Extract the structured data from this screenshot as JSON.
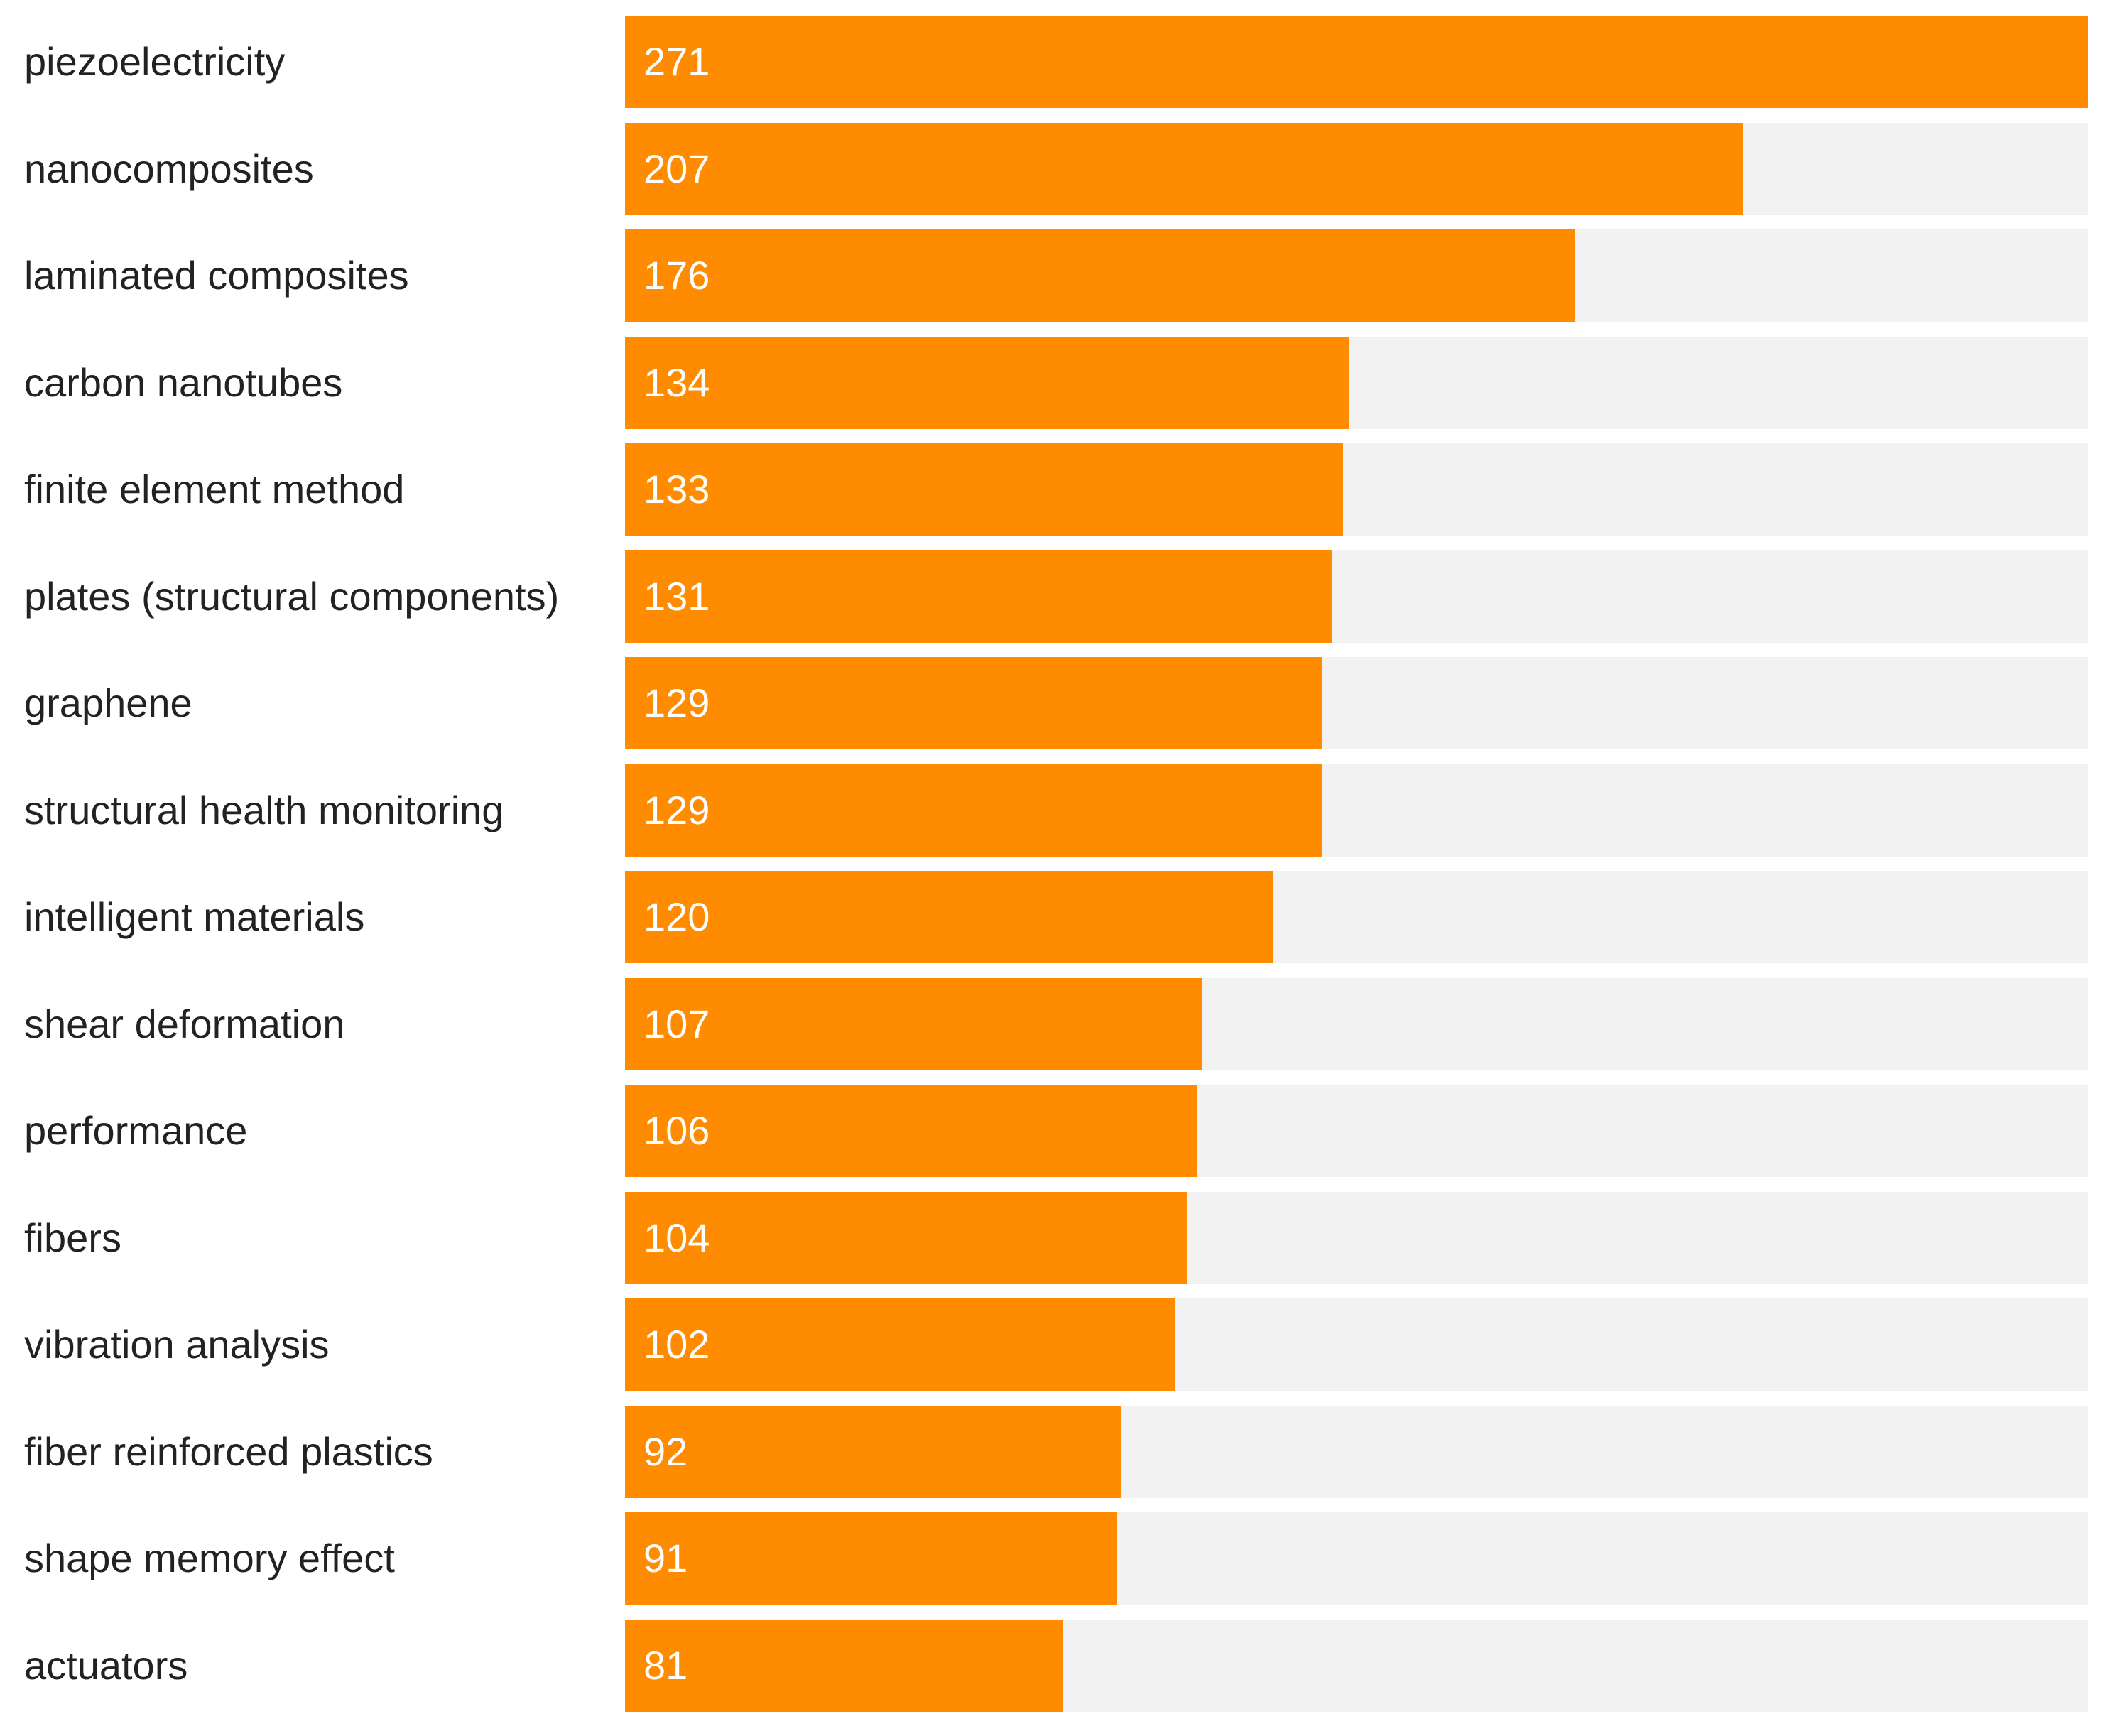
{
  "chart_data": {
    "type": "bar",
    "orientation": "horizontal",
    "title": "",
    "xlabel": "",
    "ylabel": "",
    "xlim": [
      0,
      271
    ],
    "grid": false,
    "legend": "none",
    "colors": {
      "bar": "#ff8c00",
      "track": "#f2f2f2",
      "label": "#222222",
      "value": "#ffffff"
    },
    "categories": [
      "piezoelectricity",
      "nanocomposites",
      "laminated composites",
      "carbon nanotubes",
      "finite element method",
      "plates (structural components)",
      "graphene",
      "structural health monitoring",
      "intelligent materials",
      "shear deformation",
      "performance",
      "fibers",
      "vibration analysis",
      "fiber reinforced plastics",
      "shape memory effect",
      "actuators"
    ],
    "values": [
      271,
      207,
      176,
      134,
      133,
      131,
      129,
      129,
      120,
      107,
      106,
      104,
      102,
      92,
      91,
      81
    ]
  }
}
